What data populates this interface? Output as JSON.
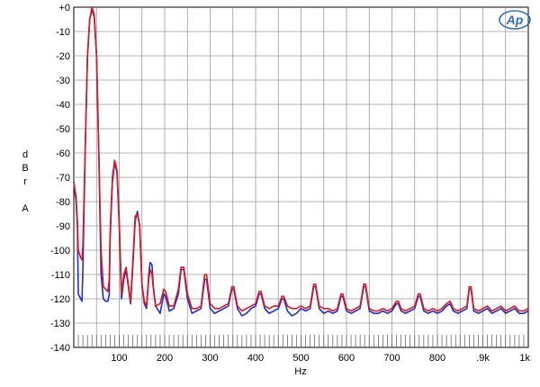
{
  "chart_data": {
    "type": "line",
    "title": "",
    "xlabel": "Hz",
    "ylabel": [
      "d",
      "B",
      "r",
      "",
      "A"
    ],
    "xlim": [
      0,
      1000
    ],
    "ylim": [
      -140,
      0
    ],
    "grid": true,
    "x_ticks": [
      100,
      200,
      300,
      400,
      500,
      600,
      700,
      800,
      900,
      1000
    ],
    "x_tick_labels": [
      "100",
      "200",
      "300",
      "400",
      "500",
      "600",
      "700",
      "800",
      ".9k",
      "1k"
    ],
    "y_ticks": [
      0,
      -10,
      -20,
      -30,
      -40,
      -50,
      -60,
      -70,
      -80,
      -90,
      -100,
      -110,
      -120,
      -130,
      -140
    ],
    "y_tick_labels": [
      "+0",
      "-10",
      "-20",
      "-30",
      "-40",
      "-50",
      "-60",
      "-70",
      "-80",
      "-90",
      "-100",
      "-110",
      "-120",
      "-130",
      "-140"
    ],
    "logo_text": "Ap",
    "series": [
      {
        "color": "#1f2fd0",
        "points": [
          [
            0,
            -72
          ],
          [
            5,
            -80
          ],
          [
            8,
            -90
          ],
          [
            10,
            -118
          ],
          [
            15,
            -120
          ],
          [
            18,
            -121
          ],
          [
            20,
            -108
          ],
          [
            25,
            -60
          ],
          [
            30,
            -20
          ],
          [
            35,
            -5
          ],
          [
            40,
            -1
          ],
          [
            45,
            -4
          ],
          [
            50,
            -20
          ],
          [
            55,
            -60
          ],
          [
            60,
            -110
          ],
          [
            65,
            -120
          ],
          [
            70,
            -121
          ],
          [
            75,
            -121
          ],
          [
            78,
            -118
          ],
          [
            80,
            -95
          ],
          [
            85,
            -72
          ],
          [
            90,
            -64
          ],
          [
            95,
            -68
          ],
          [
            100,
            -90
          ],
          [
            105,
            -120
          ],
          [
            110,
            -112
          ],
          [
            115,
            -108
          ],
          [
            120,
            -115
          ],
          [
            125,
            -122
          ],
          [
            130,
            -106
          ],
          [
            135,
            -88
          ],
          [
            140,
            -84
          ],
          [
            145,
            -90
          ],
          [
            150,
            -115
          ],
          [
            155,
            -122
          ],
          [
            160,
            -124
          ],
          [
            165,
            -110
          ],
          [
            168,
            -105
          ],
          [
            172,
            -106
          ],
          [
            175,
            -115
          ],
          [
            180,
            -123
          ],
          [
            190,
            -126
          ],
          [
            198,
            -118
          ],
          [
            202,
            -119
          ],
          [
            210,
            -125
          ],
          [
            220,
            -124
          ],
          [
            230,
            -118
          ],
          [
            236,
            -108
          ],
          [
            242,
            -108
          ],
          [
            250,
            -120
          ],
          [
            260,
            -126
          ],
          [
            270,
            -125
          ],
          [
            280,
            -124
          ],
          [
            288,
            -112
          ],
          [
            292,
            -112
          ],
          [
            300,
            -124
          ],
          [
            310,
            -126
          ],
          [
            320,
            -125
          ],
          [
            330,
            -124
          ],
          [
            340,
            -123
          ],
          [
            348,
            -116
          ],
          [
            352,
            -116
          ],
          [
            360,
            -124
          ],
          [
            370,
            -127
          ],
          [
            380,
            -126
          ],
          [
            390,
            -124
          ],
          [
            400,
            -123
          ],
          [
            408,
            -118
          ],
          [
            412,
            -118
          ],
          [
            420,
            -124
          ],
          [
            430,
            -126
          ],
          [
            440,
            -125
          ],
          [
            450,
            -124
          ],
          [
            458,
            -120
          ],
          [
            462,
            -120
          ],
          [
            470,
            -125
          ],
          [
            480,
            -127
          ],
          [
            490,
            -126
          ],
          [
            500,
            -124
          ],
          [
            510,
            -125
          ],
          [
            520,
            -124
          ],
          [
            528,
            -115
          ],
          [
            532,
            -115
          ],
          [
            540,
            -124
          ],
          [
            550,
            -126
          ],
          [
            560,
            -125
          ],
          [
            570,
            -126
          ],
          [
            580,
            -125
          ],
          [
            588,
            -119
          ],
          [
            592,
            -119
          ],
          [
            600,
            -125
          ],
          [
            610,
            -126
          ],
          [
            620,
            -125
          ],
          [
            630,
            -124
          ],
          [
            638,
            -115
          ],
          [
            642,
            -115
          ],
          [
            650,
            -125
          ],
          [
            660,
            -126
          ],
          [
            670,
            -126
          ],
          [
            680,
            -125
          ],
          [
            690,
            -126
          ],
          [
            700,
            -125
          ],
          [
            710,
            -122
          ],
          [
            714,
            -122
          ],
          [
            720,
            -125
          ],
          [
            730,
            -126
          ],
          [
            740,
            -125
          ],
          [
            750,
            -124
          ],
          [
            758,
            -119
          ],
          [
            762,
            -119
          ],
          [
            770,
            -125
          ],
          [
            780,
            -126
          ],
          [
            790,
            -125
          ],
          [
            800,
            -126
          ],
          [
            810,
            -125
          ],
          [
            820,
            -123
          ],
          [
            828,
            -122
          ],
          [
            835,
            -125
          ],
          [
            845,
            -126
          ],
          [
            855,
            -125
          ],
          [
            865,
            -124
          ],
          [
            870,
            -116
          ],
          [
            874,
            -116
          ],
          [
            880,
            -125
          ],
          [
            890,
            -126
          ],
          [
            900,
            -125
          ],
          [
            910,
            -124
          ],
          [
            920,
            -126
          ],
          [
            930,
            -125
          ],
          [
            940,
            -124
          ],
          [
            950,
            -126
          ],
          [
            960,
            -125
          ],
          [
            970,
            -124
          ],
          [
            980,
            -126
          ],
          [
            990,
            -126
          ],
          [
            1000,
            -125
          ]
        ]
      },
      {
        "color": "#e0161b",
        "points": [
          [
            0,
            -72
          ],
          [
            5,
            -78
          ],
          [
            8,
            -88
          ],
          [
            10,
            -100
          ],
          [
            15,
            -103
          ],
          [
            18,
            -104
          ],
          [
            20,
            -98
          ],
          [
            25,
            -60
          ],
          [
            30,
            -20
          ],
          [
            35,
            -5
          ],
          [
            40,
            0
          ],
          [
            45,
            -3
          ],
          [
            50,
            -20
          ],
          [
            55,
            -60
          ],
          [
            60,
            -100
          ],
          [
            65,
            -115
          ],
          [
            70,
            -116
          ],
          [
            75,
            -117
          ],
          [
            78,
            -112
          ],
          [
            80,
            -92
          ],
          [
            85,
            -70
          ],
          [
            90,
            -63
          ],
          [
            95,
            -67
          ],
          [
            100,
            -88
          ],
          [
            105,
            -118
          ],
          [
            110,
            -110
          ],
          [
            115,
            -107
          ],
          [
            120,
            -114
          ],
          [
            125,
            -121
          ],
          [
            130,
            -104
          ],
          [
            135,
            -86
          ],
          [
            140,
            -85
          ],
          [
            145,
            -90
          ],
          [
            150,
            -114
          ],
          [
            155,
            -121
          ],
          [
            160,
            -123
          ],
          [
            165,
            -112
          ],
          [
            168,
            -108
          ],
          [
            172,
            -110
          ],
          [
            175,
            -116
          ],
          [
            180,
            -123
          ],
          [
            190,
            -122
          ],
          [
            198,
            -116
          ],
          [
            202,
            -117
          ],
          [
            210,
            -123
          ],
          [
            220,
            -123
          ],
          [
            230,
            -116
          ],
          [
            236,
            -107
          ],
          [
            242,
            -107
          ],
          [
            250,
            -118
          ],
          [
            260,
            -124
          ],
          [
            270,
            -124
          ],
          [
            280,
            -123
          ],
          [
            288,
            -110
          ],
          [
            292,
            -110
          ],
          [
            300,
            -122
          ],
          [
            310,
            -124
          ],
          [
            320,
            -124
          ],
          [
            330,
            -123
          ],
          [
            340,
            -122
          ],
          [
            348,
            -115
          ],
          [
            352,
            -115
          ],
          [
            360,
            -123
          ],
          [
            370,
            -125
          ],
          [
            380,
            -124
          ],
          [
            390,
            -123
          ],
          [
            400,
            -122
          ],
          [
            408,
            -117
          ],
          [
            412,
            -117
          ],
          [
            420,
            -123
          ],
          [
            430,
            -124
          ],
          [
            440,
            -123
          ],
          [
            450,
            -123
          ],
          [
            458,
            -119
          ],
          [
            462,
            -119
          ],
          [
            470,
            -123
          ],
          [
            480,
            -124
          ],
          [
            490,
            -124
          ],
          [
            500,
            -123
          ],
          [
            510,
            -124
          ],
          [
            520,
            -123
          ],
          [
            528,
            -114
          ],
          [
            532,
            -114
          ],
          [
            540,
            -123
          ],
          [
            550,
            -124
          ],
          [
            560,
            -124
          ],
          [
            570,
            -125
          ],
          [
            580,
            -124
          ],
          [
            588,
            -118
          ],
          [
            592,
            -118
          ],
          [
            600,
            -124
          ],
          [
            610,
            -125
          ],
          [
            620,
            -124
          ],
          [
            630,
            -123
          ],
          [
            638,
            -114
          ],
          [
            642,
            -114
          ],
          [
            650,
            -124
          ],
          [
            660,
            -125
          ],
          [
            670,
            -125
          ],
          [
            680,
            -124
          ],
          [
            690,
            -125
          ],
          [
            700,
            -124
          ],
          [
            710,
            -121
          ],
          [
            714,
            -121
          ],
          [
            720,
            -124
          ],
          [
            730,
            -125
          ],
          [
            740,
            -124
          ],
          [
            750,
            -123
          ],
          [
            758,
            -118
          ],
          [
            762,
            -118
          ],
          [
            770,
            -124
          ],
          [
            780,
            -125
          ],
          [
            790,
            -124
          ],
          [
            800,
            -125
          ],
          [
            810,
            -124
          ],
          [
            820,
            -122
          ],
          [
            828,
            -121
          ],
          [
            835,
            -124
          ],
          [
            845,
            -125
          ],
          [
            855,
            -124
          ],
          [
            865,
            -123
          ],
          [
            870,
            -115
          ],
          [
            874,
            -115
          ],
          [
            880,
            -124
          ],
          [
            890,
            -125
          ],
          [
            900,
            -124
          ],
          [
            910,
            -123
          ],
          [
            920,
            -125
          ],
          [
            930,
            -124
          ],
          [
            940,
            -123
          ],
          [
            950,
            -125
          ],
          [
            960,
            -124
          ],
          [
            970,
            -123
          ],
          [
            980,
            -125
          ],
          [
            990,
            -125
          ],
          [
            1000,
            -124
          ]
        ]
      }
    ]
  }
}
